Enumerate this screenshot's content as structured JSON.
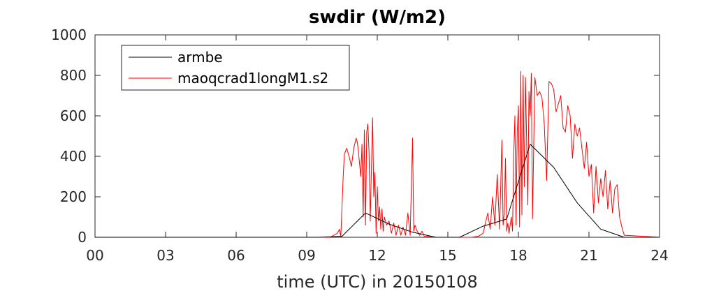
{
  "chart_data": {
    "type": "line",
    "title": "swdir  (W/m2)",
    "xlabel": "time (UTC) in 20150108",
    "ylabel": "",
    "xlim": [
      0,
      24
    ],
    "ylim": [
      0,
      1000
    ],
    "xticks": [
      0,
      3,
      6,
      9,
      12,
      15,
      18,
      21,
      24
    ],
    "xtick_labels": [
      "00",
      "03",
      "06",
      "09",
      "12",
      "15",
      "18",
      "21",
      "24"
    ],
    "yticks": [
      0,
      200,
      400,
      600,
      800,
      1000
    ],
    "ytick_labels": [
      "0",
      "200",
      "400",
      "600",
      "800",
      "1000"
    ],
    "grid": false,
    "legend_position": "top-left",
    "series": [
      {
        "name": "armbe",
        "color": "#000000",
        "x": [
          0,
          9.5,
          10.5,
          11.5,
          12.5,
          13.5,
          14.5,
          15.5,
          16.5,
          17.5,
          18.5,
          19.5,
          20.5,
          21.5,
          22.5,
          24
        ],
        "y": [
          0,
          0,
          5,
          120,
          65,
          25,
          0,
          0,
          55,
          90,
          460,
          345,
          170,
          40,
          0,
          0
        ]
      },
      {
        "name": "maoqcrad1longM1.s2",
        "color": "#ff0000",
        "x": [
          0,
          10.0,
          10.3,
          10.4,
          10.45,
          10.5,
          10.55,
          10.6,
          10.7,
          10.8,
          10.9,
          11.0,
          11.1,
          11.15,
          11.2,
          11.3,
          11.35,
          11.4,
          11.45,
          11.5,
          11.55,
          11.6,
          11.65,
          11.7,
          11.8,
          11.85,
          11.9,
          11.95,
          12.0,
          12.05,
          12.1,
          12.15,
          12.2,
          12.25,
          12.3,
          12.4,
          12.5,
          12.6,
          12.7,
          12.8,
          12.9,
          13.0,
          13.1,
          13.2,
          13.3,
          13.4,
          13.5,
          13.55,
          13.6,
          13.7,
          13.8,
          13.9,
          14.0,
          14.5,
          15.0,
          15.5,
          16.0,
          16.3,
          16.5,
          16.7,
          16.8,
          16.9,
          17.0,
          17.1,
          17.2,
          17.3,
          17.35,
          17.4,
          17.45,
          17.5,
          17.55,
          17.6,
          17.7,
          17.75,
          17.8,
          17.85,
          17.9,
          17.95,
          18.0,
          18.05,
          18.1,
          18.15,
          18.2,
          18.25,
          18.3,
          18.4,
          18.45,
          18.5,
          18.55,
          18.6,
          18.7,
          18.8,
          18.9,
          19.0,
          19.1,
          19.2,
          19.3,
          19.4,
          19.5,
          19.6,
          19.7,
          19.8,
          19.9,
          20.0,
          20.1,
          20.2,
          20.3,
          20.4,
          20.5,
          20.6,
          20.7,
          20.8,
          20.9,
          21.0,
          21.1,
          21.2,
          21.3,
          21.4,
          21.5,
          21.6,
          21.7,
          21.8,
          21.9,
          22.0,
          22.1,
          22.2,
          22.3,
          22.4,
          22.5,
          24
        ],
        "y": [
          0,
          0,
          20,
          40,
          0,
          150,
          300,
          410,
          440,
          400,
          350,
          440,
          490,
          470,
          420,
          300,
          460,
          100,
          530,
          60,
          520,
          560,
          420,
          80,
          590,
          200,
          320,
          20,
          250,
          80,
          150,
          40,
          140,
          30,
          100,
          60,
          80,
          20,
          70,
          10,
          60,
          10,
          50,
          10,
          120,
          10,
          490,
          30,
          60,
          30,
          10,
          30,
          5,
          0,
          0,
          0,
          0,
          5,
          20,
          120,
          40,
          200,
          60,
          310,
          40,
          480,
          60,
          120,
          390,
          30,
          70,
          20,
          100,
          30,
          410,
          600,
          60,
          520,
          650,
          50,
          820,
          110,
          800,
          250,
          790,
          160,
          720,
          600,
          810,
          90,
          790,
          700,
          720,
          690,
          560,
          280,
          770,
          760,
          730,
          620,
          660,
          700,
          540,
          520,
          650,
          600,
          390,
          560,
          500,
          540,
          440,
          340,
          470,
          300,
          360,
          120,
          350,
          170,
          290,
          200,
          330,
          140,
          280,
          120,
          240,
          260,
          100,
          50,
          10,
          0
        ]
      }
    ]
  }
}
